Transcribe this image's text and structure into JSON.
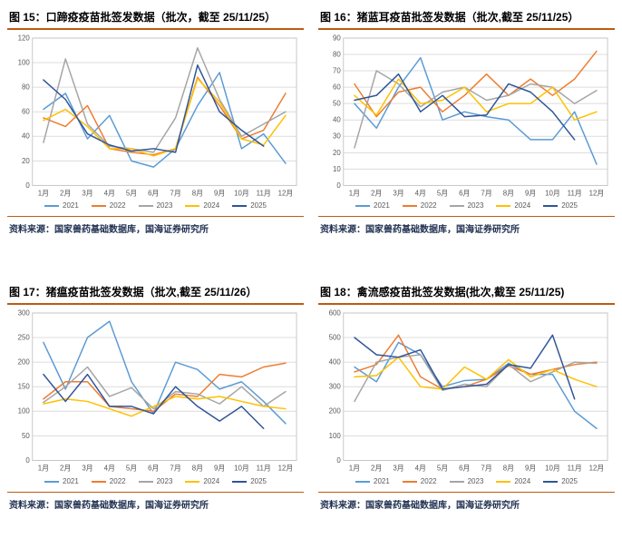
{
  "source_label": "资料来源：国家兽药基础数据库，国海证券研究所",
  "accent": {
    "title_underline": "#BE5A14",
    "source_divider": "#BE5A14",
    "gridline": "#DCDCDC",
    "plot_border": "#C8C8C8",
    "axis_text": "#595959",
    "source_text": "#1F3050"
  },
  "chart_data": [
    {
      "type": "line",
      "title": "图 15：口蹄疫疫苗批签发数据（批次，截至 25/11/25）",
      "categories": [
        "1月",
        "2月",
        "3月",
        "4月",
        "5月",
        "6月",
        "7月",
        "8月",
        "9月",
        "10月",
        "11月",
        "12月"
      ],
      "ylim": [
        0,
        120
      ],
      "yticks": [
        0,
        20,
        40,
        60,
        80,
        100,
        120
      ],
      "grid": true,
      "legend_position": "bottom",
      "series": [
        {
          "name": "2021",
          "color": "#5B9BD5",
          "values": [
            62,
            75,
            38,
            57,
            20,
            15,
            30,
            65,
            92,
            30,
            42,
            18
          ]
        },
        {
          "name": "2022",
          "color": "#ED7D31",
          "values": [
            55,
            48,
            65,
            30,
            27,
            25,
            30,
            88,
            65,
            38,
            45,
            75
          ]
        },
        {
          "name": "2023",
          "color": "#A5A5A5",
          "values": [
            35,
            103,
            50,
            32,
            30,
            27,
            55,
            112,
            70,
            40,
            50,
            60
          ]
        },
        {
          "name": "2024",
          "color": "#FFC000",
          "values": [
            53,
            62,
            48,
            30,
            30,
            24,
            30,
            87,
            68,
            38,
            33,
            57
          ]
        },
        {
          "name": "2025",
          "color": "#2F5597",
          "values": [
            86,
            70,
            42,
            33,
            28,
            30,
            27,
            98,
            60,
            45,
            32,
            null
          ]
        }
      ]
    },
    {
      "type": "line",
      "title": "图 16：猪蓝耳疫苗批签发数据（批次,截至 25/11/25）",
      "categories": [
        "1月",
        "2月",
        "3月",
        "4月",
        "5月",
        "6月",
        "7月",
        "8月",
        "9月",
        "10月",
        "11月",
        "12月"
      ],
      "ylim": [
        0,
        90
      ],
      "yticks": [
        0,
        10,
        20,
        30,
        40,
        50,
        60,
        70,
        80,
        90
      ],
      "grid": true,
      "legend_position": "bottom",
      "series": [
        {
          "name": "2021",
          "color": "#5B9BD5",
          "values": [
            50,
            35,
            60,
            78,
            40,
            45,
            42,
            40,
            28,
            28,
            45,
            13
          ]
        },
        {
          "name": "2022",
          "color": "#ED7D31",
          "values": [
            62,
            42,
            57,
            60,
            45,
            55,
            68,
            55,
            65,
            55,
            65,
            82
          ]
        },
        {
          "name": "2023",
          "color": "#A5A5A5",
          "values": [
            23,
            70,
            62,
            48,
            57,
            60,
            52,
            55,
            62,
            60,
            50,
            58
          ]
        },
        {
          "name": "2024",
          "color": "#FFC000",
          "values": [
            55,
            43,
            65,
            50,
            52,
            60,
            45,
            50,
            50,
            60,
            40,
            45
          ]
        },
        {
          "name": "2025",
          "color": "#2F5597",
          "values": [
            52,
            55,
            68,
            45,
            55,
            42,
            43,
            62,
            57,
            45,
            28,
            null
          ]
        }
      ]
    },
    {
      "type": "line",
      "title": "图 17：猪瘟疫苗批签发数据（批次,截至 25/11/26）",
      "categories": [
        "1月",
        "2月",
        "3月",
        "4月",
        "5月",
        "6月",
        "7月",
        "8月",
        "9月",
        "10月",
        "11月",
        "12月"
      ],
      "ylim": [
        0,
        300
      ],
      "yticks": [
        0,
        50,
        100,
        150,
        200,
        250,
        300
      ],
      "grid": true,
      "legend_position": "bottom",
      "series": [
        {
          "name": "2021",
          "color": "#5B9BD5",
          "values": [
            240,
            145,
            250,
            283,
            160,
            95,
            200,
            185,
            145,
            160,
            120,
            75
          ]
        },
        {
          "name": "2022",
          "color": "#ED7D31",
          "values": [
            125,
            160,
            160,
            110,
            105,
            100,
            135,
            130,
            175,
            170,
            190,
            198
          ]
        },
        {
          "name": "2023",
          "color": "#A5A5A5",
          "values": [
            118,
            150,
            190,
            130,
            148,
            105,
            140,
            135,
            115,
            150,
            110,
            140
          ]
        },
        {
          "name": "2024",
          "color": "#FFC000",
          "values": [
            115,
            125,
            120,
            105,
            90,
            110,
            130,
            125,
            130,
            120,
            110,
            105
          ]
        },
        {
          "name": "2025",
          "color": "#2F5597",
          "values": [
            175,
            120,
            175,
            110,
            110,
            95,
            150,
            110,
            80,
            110,
            65,
            null
          ]
        }
      ]
    },
    {
      "type": "line",
      "title": "图 18：禽流感疫苗批签发数据(批次,截至 25/11/25)",
      "categories": [
        "1月",
        "2月",
        "3月",
        "4月",
        "5月",
        "6月",
        "7月",
        "8月",
        "9月",
        "10月",
        "11月",
        "12月"
      ],
      "ylim": [
        0,
        600
      ],
      "yticks": [
        0,
        100,
        200,
        300,
        400,
        500,
        600
      ],
      "grid": true,
      "legend_position": "bottom",
      "series": [
        {
          "name": "2021",
          "color": "#5B9BD5",
          "values": [
            380,
            320,
            480,
            430,
            300,
            325,
            330,
            395,
            350,
            350,
            200,
            130
          ]
        },
        {
          "name": "2022",
          "color": "#ED7D31",
          "values": [
            360,
            390,
            510,
            340,
            290,
            300,
            330,
            385,
            350,
            370,
            390,
            400
          ]
        },
        {
          "name": "2023",
          "color": "#A5A5A5",
          "values": [
            240,
            400,
            420,
            430,
            285,
            310,
            300,
            390,
            320,
            360,
            400,
            395
          ]
        },
        {
          "name": "2024",
          "color": "#FFC000",
          "values": [
            340,
            345,
            420,
            300,
            290,
            380,
            330,
            410,
            340,
            370,
            330,
            300
          ]
        },
        {
          "name": "2025",
          "color": "#2F5597",
          "values": [
            500,
            430,
            420,
            450,
            290,
            300,
            310,
            390,
            375,
            510,
            250,
            null
          ]
        }
      ]
    }
  ]
}
